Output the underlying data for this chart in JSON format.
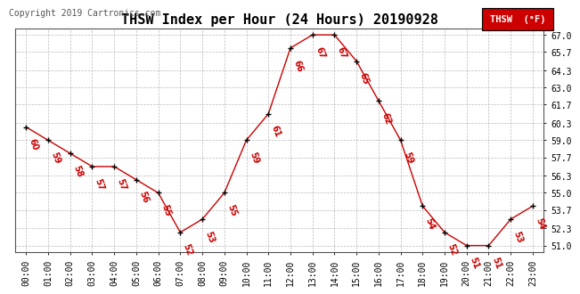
{
  "title": "THSW Index per Hour (24 Hours) 20190928",
  "copyright": "Copyright 2019 Cartronics.com",
  "legend_label": "THSW  (°F)",
  "legend_bg": "#cc0000",
  "legend_fg": "#ffffff",
  "hours": [
    0,
    1,
    2,
    3,
    4,
    5,
    6,
    7,
    8,
    9,
    10,
    11,
    12,
    13,
    14,
    15,
    16,
    17,
    18,
    19,
    20,
    21,
    22,
    23
  ],
  "values": [
    60,
    59,
    58,
    57,
    57,
    56,
    55,
    52,
    53,
    55,
    59,
    61,
    66,
    67,
    67,
    65,
    62,
    59,
    54,
    52,
    51,
    51,
    53,
    54
  ],
  "xlabels": [
    "00:00",
    "01:00",
    "02:00",
    "03:00",
    "04:00",
    "05:00",
    "06:00",
    "07:00",
    "08:00",
    "09:00",
    "10:00",
    "11:00",
    "12:00",
    "13:00",
    "14:00",
    "15:00",
    "16:00",
    "17:00",
    "18:00",
    "19:00",
    "20:00",
    "21:00",
    "22:00",
    "23:00"
  ],
  "yticks": [
    51.0,
    52.3,
    53.7,
    55.0,
    56.3,
    57.7,
    59.0,
    60.3,
    61.7,
    63.0,
    64.3,
    65.7,
    67.0
  ],
  "ylim": [
    50.5,
    67.5
  ],
  "line_color": "#cc0000",
  "marker_color": "#000000",
  "label_color": "#cc0000",
  "grid_color": "#bbbbbb",
  "bg_color": "#ffffff",
  "title_fontsize": 11,
  "copyright_fontsize": 7,
  "label_fontsize": 7,
  "tick_fontsize": 7,
  "legend_fontsize": 7.5
}
